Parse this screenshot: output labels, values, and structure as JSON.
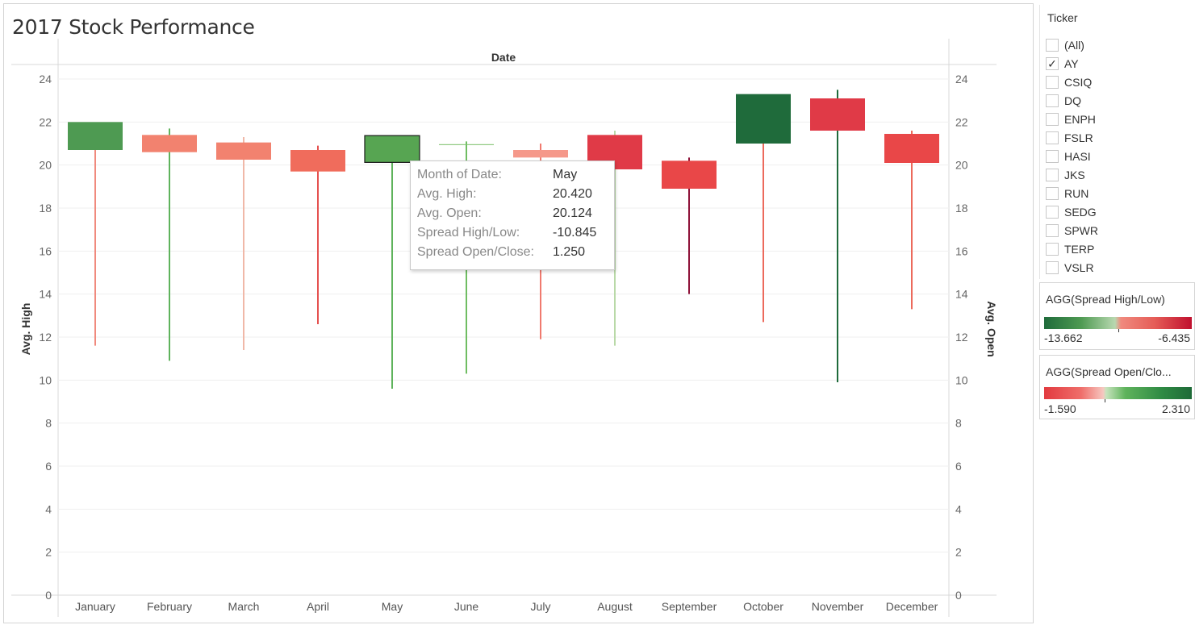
{
  "title": "2017 Stock Performance",
  "chart_data": {
    "type": "candlestick",
    "title": "2017 Stock Performance",
    "column_header": "Date",
    "ylabel_left": "Avg. High",
    "ylabel_right": "Avg. Open",
    "ylim": [
      0,
      24
    ],
    "yticks": [
      "0",
      "2",
      "4",
      "6",
      "8",
      "10",
      "12",
      "14",
      "16",
      "18",
      "20",
      "22",
      "24"
    ],
    "categories": [
      "January",
      "February",
      "March",
      "April",
      "May",
      "June",
      "July",
      "August",
      "September",
      "October",
      "November",
      "December"
    ],
    "series": [
      {
        "month": "January",
        "box_low": 20.7,
        "box_high": 22.0,
        "wick_low": 11.6,
        "wick_high": 20.7,
        "color": "#4e9a52"
      },
      {
        "month": "February",
        "box_low": 20.6,
        "box_high": 21.4,
        "wick_low": 10.9,
        "wick_high": 21.7,
        "color": "#f2826f"
      },
      {
        "month": "March",
        "box_low": 20.25,
        "box_high": 21.05,
        "wick_low": 11.4,
        "wick_high": 21.3,
        "color": "#f2826f"
      },
      {
        "month": "April",
        "box_low": 19.7,
        "box_high": 20.7,
        "wick_low": 12.6,
        "wick_high": 20.9,
        "color": "#f06c5c"
      },
      {
        "month": "May",
        "box_low": 20.124,
        "box_high": 21.37,
        "wick_low": 9.6,
        "wick_high": 20.42,
        "color": "#57a552",
        "selected": true
      },
      {
        "month": "June",
        "box_low": 20.93,
        "box_high": 20.97,
        "wick_low": 10.3,
        "wick_high": 21.1,
        "color": "#7fc36f"
      },
      {
        "month": "July",
        "box_low": 20.35,
        "box_high": 20.7,
        "wick_low": 11.9,
        "wick_high": 21.0,
        "color": "#f5988a"
      },
      {
        "month": "August",
        "box_low": 19.8,
        "box_high": 21.4,
        "wick_low": 11.6,
        "wick_high": 21.6,
        "color": "#e03a47"
      },
      {
        "month": "September",
        "box_low": 18.9,
        "box_high": 20.2,
        "wick_low": 14.0,
        "wick_high": 20.35,
        "color": "#e94748"
      },
      {
        "month": "October",
        "box_low": 21.0,
        "box_high": 23.3,
        "wick_low": 12.7,
        "wick_high": 21.0,
        "color": "#1f6b3b"
      },
      {
        "month": "November",
        "box_low": 21.6,
        "box_high": 23.1,
        "wick_low": 9.9,
        "wick_high": 23.5,
        "color": "#e03a47"
      },
      {
        "month": "December",
        "box_low": 20.1,
        "box_high": 21.45,
        "wick_low": 13.3,
        "wick_high": 21.6,
        "color": "#e94748"
      }
    ],
    "wick_colors": {
      "January": "#f08a7e",
      "February": "#5fb35c",
      "March": "#f0b8a8",
      "April": "#e5514f",
      "May": "#5fb35c",
      "June": "#6fbd62",
      "July": "#f07a6e",
      "August": "#b9d9a8",
      "September": "#8e1238",
      "October": "#ec6a5c",
      "November": "#1f6b3b",
      "December": "#ec6a5c"
    },
    "grid": true
  },
  "tooltip": {
    "rows": [
      {
        "label": "Month of Date:",
        "value": "May"
      },
      {
        "label": "Avg. High:",
        "value": "20.420"
      },
      {
        "label": "Avg. Open:",
        "value": "20.124"
      },
      {
        "label": "Spread High/Low:",
        "value": "-10.845"
      },
      {
        "label": "Spread Open/Close:",
        "value": "1.250"
      }
    ]
  },
  "ticker_filter": {
    "title": "Ticker",
    "items": [
      {
        "label": "(All)",
        "checked": false
      },
      {
        "label": "AY",
        "checked": true
      },
      {
        "label": "CSIQ",
        "checked": false
      },
      {
        "label": "DQ",
        "checked": false
      },
      {
        "label": "ENPH",
        "checked": false
      },
      {
        "label": "FSLR",
        "checked": false
      },
      {
        "label": "HASI",
        "checked": false
      },
      {
        "label": "JKS",
        "checked": false
      },
      {
        "label": "RUN",
        "checked": false
      },
      {
        "label": "SEDG",
        "checked": false
      },
      {
        "label": "SPWR",
        "checked": false
      },
      {
        "label": "TERP",
        "checked": false
      },
      {
        "label": "VSLR",
        "checked": false
      }
    ],
    "check_mark": "✓"
  },
  "legend_spread_high_low": {
    "title": "AGG(Spread High/Low)",
    "min": "-13.662",
    "max": "-6.435",
    "marker": 0.5
  },
  "legend_spread_open_close": {
    "title": "AGG(Spread Open/Clo...",
    "min": "-1.590",
    "max": "2.310",
    "marker": 0.41
  }
}
